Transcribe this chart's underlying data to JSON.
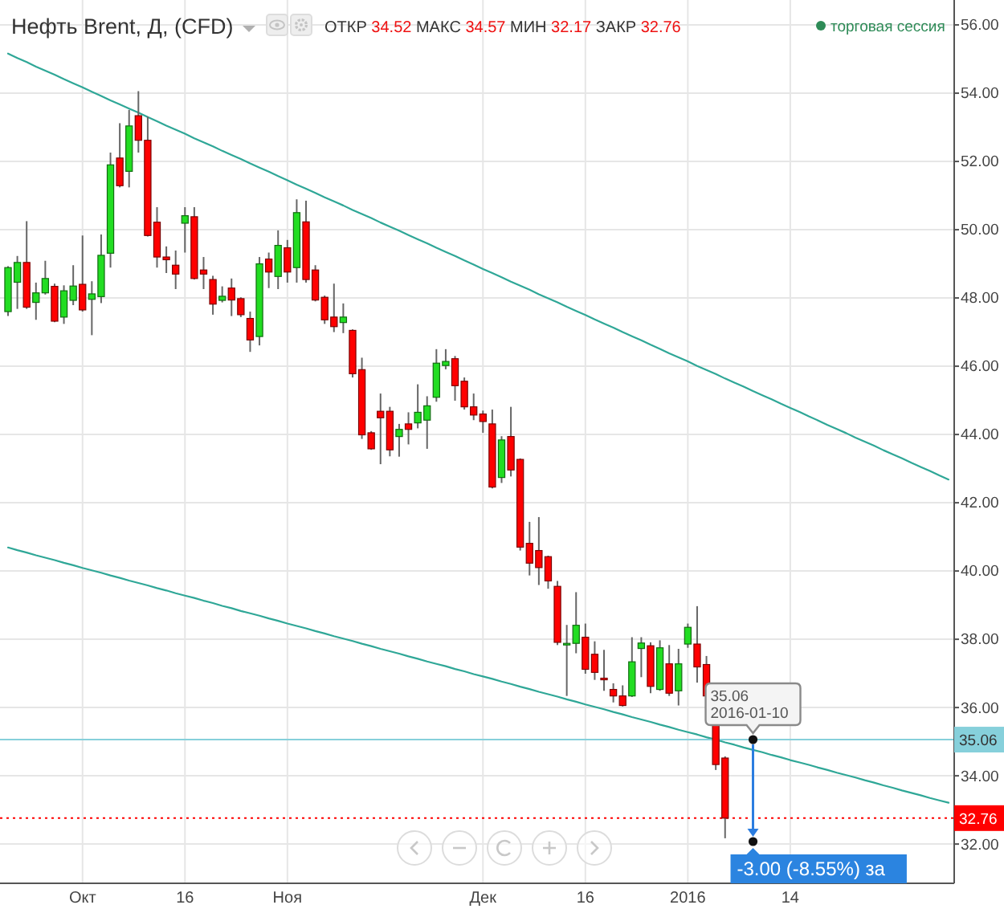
{
  "chart_data": {
    "type": "candlestick",
    "title": "Нефть Brent, Д, (CFD)",
    "subtitle": "ОТКР 34.52 МАКС 34.57 МИН 32.17 ЗАКР 32.76",
    "categories": [
      null,
      null,
      null,
      null,
      null,
      null,
      null,
      null,
      "Окт",
      null,
      null,
      null,
      null,
      null,
      null,
      null,
      null,
      null,
      null,
      "16",
      null,
      null,
      null,
      null,
      null,
      null,
      null,
      null,
      null,
      null,
      "Ноя",
      null,
      null,
      null,
      null,
      null,
      null,
      null,
      null,
      null,
      null,
      null,
      null,
      null,
      null,
      null,
      null,
      null,
      null,
      null,
      null,
      "Дек",
      null,
      null,
      null,
      null,
      null,
      null,
      null,
      null,
      null,
      null,
      "16",
      null,
      null,
      null,
      null,
      null,
      null,
      null,
      null,
      null,
      null,
      "2016",
      null,
      null,
      null,
      null,
      null,
      null,
      null,
      null,
      null,
      null,
      "14",
      null,
      null,
      null,
      null,
      null,
      null,
      null,
      null,
      null,
      null,
      null,
      null,
      null,
      null,
      null,
      null,
      null
    ],
    "ohlc": [
      [
        47.6,
        48.93,
        47.47,
        48.89
      ],
      [
        48.46,
        49.23,
        47.68,
        49.04
      ],
      [
        49.04,
        50.25,
        47.68,
        47.73
      ],
      [
        47.87,
        48.45,
        47.36,
        48.15
      ],
      [
        48.15,
        49.09,
        48.1,
        48.57
      ],
      [
        48.34,
        48.42,
        47.29,
        47.32
      ],
      [
        47.44,
        48.37,
        47.24,
        48.21
      ],
      [
        47.93,
        48.96,
        47.79,
        48.35
      ],
      [
        48.4,
        49.83,
        47.6,
        47.65
      ],
      [
        47.96,
        48.49,
        46.91,
        48.12
      ],
      [
        48.04,
        49.86,
        47.85,
        49.25
      ],
      [
        49.31,
        52.26,
        48.89,
        51.9
      ],
      [
        52.1,
        53.12,
        51.24,
        51.29
      ],
      [
        51.71,
        53.51,
        51.24,
        53.04
      ],
      [
        53.34,
        54.06,
        52.26,
        52.62
      ],
      [
        52.62,
        53.31,
        49.8,
        49.83
      ],
      [
        50.22,
        50.66,
        48.89,
        49.2
      ],
      [
        49.2,
        49.51,
        48.73,
        49.12
      ],
      [
        48.96,
        49.39,
        48.26,
        48.7
      ],
      [
        50.19,
        50.66,
        49.33,
        50.41
      ],
      [
        50.38,
        50.66,
        48.54,
        48.57
      ],
      [
        48.82,
        49.2,
        48.26,
        48.7
      ],
      [
        48.54,
        48.65,
        47.51,
        47.82
      ],
      [
        47.93,
        48.34,
        47.87,
        48.05
      ],
      [
        48.29,
        48.57,
        47.47,
        47.94
      ],
      [
        47.98,
        48.02,
        47.44,
        47.51
      ],
      [
        47.4,
        47.6,
        46.42,
        46.77
      ],
      [
        46.87,
        49.2,
        46.61,
        49.0
      ],
      [
        49.14,
        49.33,
        48.29,
        48.76
      ],
      [
        48.63,
        49.98,
        48.26,
        49.54
      ],
      [
        49.47,
        49.7,
        48.45,
        48.76
      ],
      [
        48.89,
        50.89,
        48.45,
        50.5
      ],
      [
        50.23,
        50.85,
        48.45,
        48.54
      ],
      [
        48.82,
        48.96,
        47.9,
        47.94
      ],
      [
        48.02,
        48.07,
        47.24,
        47.36
      ],
      [
        47.44,
        48.42,
        47.0,
        47.16
      ],
      [
        47.28,
        47.84,
        46.97,
        47.44
      ],
      [
        47.05,
        47.08,
        45.67,
        45.78
      ],
      [
        45.9,
        46.25,
        43.87,
        43.99
      ],
      [
        44.05,
        44.1,
        43.55,
        43.58
      ],
      [
        44.68,
        45.2,
        43.13,
        44.49
      ],
      [
        44.68,
        44.81,
        43.36,
        43.55
      ],
      [
        43.94,
        44.31,
        43.35,
        44.15
      ],
      [
        44.31,
        44.65,
        43.71,
        44.15
      ],
      [
        44.34,
        45.47,
        44.18,
        44.65
      ],
      [
        44.42,
        45.12,
        43.58,
        44.84
      ],
      [
        45.09,
        46.5,
        44.96,
        46.09
      ],
      [
        46.02,
        46.5,
        45.91,
        46.14
      ],
      [
        46.22,
        46.3,
        44.99,
        45.43
      ],
      [
        45.56,
        45.67,
        44.73,
        44.81
      ],
      [
        44.81,
        45.2,
        44.42,
        44.57
      ],
      [
        44.6,
        44.7,
        44.05,
        44.38
      ],
      [
        44.31,
        44.73,
        42.42,
        42.46
      ],
      [
        42.74,
        43.95,
        42.58,
        43.84
      ],
      [
        43.94,
        44.81,
        42.77,
        42.96
      ],
      [
        43.27,
        43.3,
        40.6,
        40.7
      ],
      [
        40.81,
        41.44,
        39.87,
        40.23
      ],
      [
        40.6,
        41.58,
        39.59,
        40.1
      ],
      [
        40.42,
        40.45,
        39.48,
        39.71
      ],
      [
        39.55,
        39.71,
        37.83,
        37.91
      ],
      [
        37.85,
        38.42,
        36.34,
        37.88
      ],
      [
        37.88,
        39.38,
        37.59,
        38.41
      ],
      [
        38.06,
        38.46,
        36.99,
        37.12
      ],
      [
        37.56,
        37.94,
        36.81,
        37.03
      ],
      [
        36.86,
        37.69,
        36.49,
        36.84
      ],
      [
        36.53,
        36.71,
        36.15,
        36.34
      ],
      [
        36.34,
        36.65,
        36.03,
        36.06
      ],
      [
        36.34,
        38.06,
        36.31,
        37.34
      ],
      [
        37.73,
        38.06,
        36.89,
        37.89
      ],
      [
        37.81,
        37.91,
        36.42,
        36.62
      ],
      [
        36.53,
        37.97,
        36.49,
        37.75
      ],
      [
        37.28,
        37.83,
        36.34,
        36.42
      ],
      [
        36.49,
        37.72,
        36.06,
        37.28
      ],
      [
        37.86,
        38.46,
        37.75,
        38.35
      ],
      [
        37.86,
        38.97,
        36.73,
        37.19
      ],
      [
        37.26,
        37.51,
        36.26,
        36.34
      ],
      [
        36.62,
        36.65,
        34.17,
        34.33
      ],
      [
        34.52,
        34.57,
        32.17,
        32.76
      ],
      null,
      null,
      null,
      null,
      null,
      null,
      null,
      null,
      null,
      null,
      null,
      null,
      null,
      null,
      null,
      null,
      null,
      null,
      null,
      null,
      null,
      null,
      null,
      null
    ],
    "colors": [
      "#22dd22",
      "#22dd22",
      "#ff0000",
      "#22dd22",
      "#22dd22",
      "#ff0000",
      "#22dd22",
      "#22dd22",
      "#ff0000",
      "#22dd22",
      "#22dd22",
      "#22dd22",
      "#ff0000",
      "#22dd22",
      "#ff0000",
      "#ff0000",
      "#ff0000",
      "#ff0000",
      "#ff0000",
      "#22dd22",
      "#ff0000",
      "#ff0000",
      "#ff0000",
      "#22dd22",
      "#ff0000",
      "#ff0000",
      "#ff0000",
      "#22dd22",
      "#ff0000",
      "#22dd22",
      "#ff0000",
      "#22dd22",
      "#ff0000",
      "#ff0000",
      "#ff0000",
      "#ff0000",
      "#22dd22",
      "#ff0000",
      "#ff0000",
      "#ff0000",
      "#ff0000",
      "#ff0000",
      "#22dd22",
      "#ff0000",
      "#22dd22",
      "#22dd22",
      "#22dd22",
      "#22dd22",
      "#ff0000",
      "#ff0000",
      "#ff0000",
      "#ff0000",
      "#ff0000",
      "#22dd22",
      "#ff0000",
      "#ff0000",
      "#ff0000",
      "#ff0000",
      "#ff0000",
      "#ff0000",
      "#22dd22",
      "#22dd22",
      "#ff0000",
      "#ff0000",
      "#ff0000",
      "#ff0000",
      "#ff0000",
      "#22dd22",
      "#22dd22",
      "#ff0000",
      "#22dd22",
      "#ff0000",
      "#22dd22",
      "#22dd22",
      "#ff0000",
      "#ff0000",
      "#ff0000",
      "#ff0000",
      null,
      null,
      null,
      null,
      null,
      null,
      null,
      null,
      null,
      null,
      null,
      null,
      null,
      null,
      null,
      null,
      null,
      null,
      null,
      null,
      null,
      null,
      null,
      null
    ],
    "series": [
      {
        "type": "line",
        "color": "#2fa797",
        "values": [
          55.16,
          55.03,
          54.91,
          54.78,
          54.66,
          54.54,
          54.41,
          54.29,
          54.17,
          54.04,
          53.92,
          53.79,
          53.67,
          53.55,
          53.43,
          53.3,
          53.18,
          53.05,
          52.93,
          52.81,
          52.68,
          52.56,
          52.44,
          52.31,
          52.19,
          52.07,
          51.94,
          51.82,
          51.7,
          51.57,
          51.45,
          51.32,
          51.2,
          51.08,
          50.95,
          50.83,
          50.71,
          50.58,
          50.46,
          50.34,
          50.21,
          50.09,
          49.97,
          49.84,
          49.72,
          49.6,
          49.47,
          49.35,
          49.23,
          49.1,
          48.98,
          48.85,
          48.73,
          48.61,
          48.48,
          48.36,
          48.24,
          48.11,
          47.99,
          47.87,
          47.74,
          47.62,
          47.5,
          47.37,
          47.25,
          47.13,
          47.0,
          46.88,
          46.76,
          46.63,
          46.51,
          46.38,
          46.26,
          46.14,
          46.01,
          45.89,
          45.77,
          45.64,
          45.52,
          45.4,
          45.27,
          45.15,
          45.03,
          44.9,
          44.78,
          44.66,
          44.53,
          44.41,
          44.28,
          44.16,
          44.04,
          43.91,
          43.79,
          43.67,
          43.54,
          43.42,
          43.3,
          43.17,
          43.05,
          42.93,
          42.8,
          42.68
        ]
      },
      {
        "type": "line",
        "color": "#2fa797",
        "values": [
          40.69,
          40.61,
          40.54,
          40.46,
          40.39,
          40.32,
          40.24,
          40.17,
          40.09,
          40.02,
          39.95,
          39.87,
          39.8,
          39.72,
          39.65,
          39.58,
          39.5,
          39.43,
          39.35,
          39.28,
          39.21,
          39.13,
          39.06,
          38.98,
          38.91,
          38.83,
          38.76,
          38.69,
          38.61,
          38.54,
          38.46,
          38.39,
          38.32,
          38.24,
          38.17,
          38.09,
          38.02,
          37.95,
          37.87,
          37.8,
          37.72,
          37.65,
          37.58,
          37.5,
          37.43,
          37.35,
          37.28,
          37.21,
          37.13,
          37.06,
          36.98,
          36.91,
          36.84,
          36.76,
          36.69,
          36.61,
          36.54,
          36.46,
          36.39,
          36.32,
          36.24,
          36.17,
          36.09,
          36.02,
          35.95,
          35.87,
          35.8,
          35.72,
          35.65,
          35.58,
          35.5,
          35.43,
          35.35,
          35.28,
          35.21,
          35.13,
          35.06,
          34.98,
          34.91,
          34.83,
          34.76,
          34.69,
          34.61,
          34.54,
          34.46,
          34.39,
          34.32,
          34.24,
          34.17,
          34.09,
          34.02,
          33.95,
          33.87,
          33.8,
          33.72,
          33.65,
          33.57,
          33.5,
          33.43,
          33.35,
          33.28,
          33.21
        ]
      }
    ],
    "ylim": [
      30.85,
      56.73
    ],
    "yticks": [
      {
        "value": 32,
        "label": "32.00"
      },
      {
        "value": 34,
        "label": "34.00"
      },
      {
        "value": 36,
        "label": "36.00"
      },
      {
        "value": 38,
        "label": "38.00"
      },
      {
        "value": 40,
        "label": "40.00"
      },
      {
        "value": 42,
        "label": "42.00"
      },
      {
        "value": 44,
        "label": "44.00"
      },
      {
        "value": 46,
        "label": "46.00"
      },
      {
        "value": 48,
        "label": "48.00"
      },
      {
        "value": 50,
        "label": "50.00"
      },
      {
        "value": 52,
        "label": "52.00"
      },
      {
        "value": 54,
        "label": "54.00"
      },
      {
        "value": 56,
        "label": "56.00"
      }
    ],
    "grid": true,
    "ref_lines": [
      {
        "axis": "y",
        "value": 35.06,
        "label": "35.06",
        "color": "#86d0db"
      },
      {
        "axis": "y",
        "value": 32.76,
        "label": "32.76",
        "color": "#ff0000",
        "line_style": "dotted"
      }
    ],
    "annotations": [
      {
        "text": "35.06\n2016-01-10",
        "y": 35.06
      },
      "-3.00 (-8.55%) за",
      "торговая сессия"
    ]
  }
}
